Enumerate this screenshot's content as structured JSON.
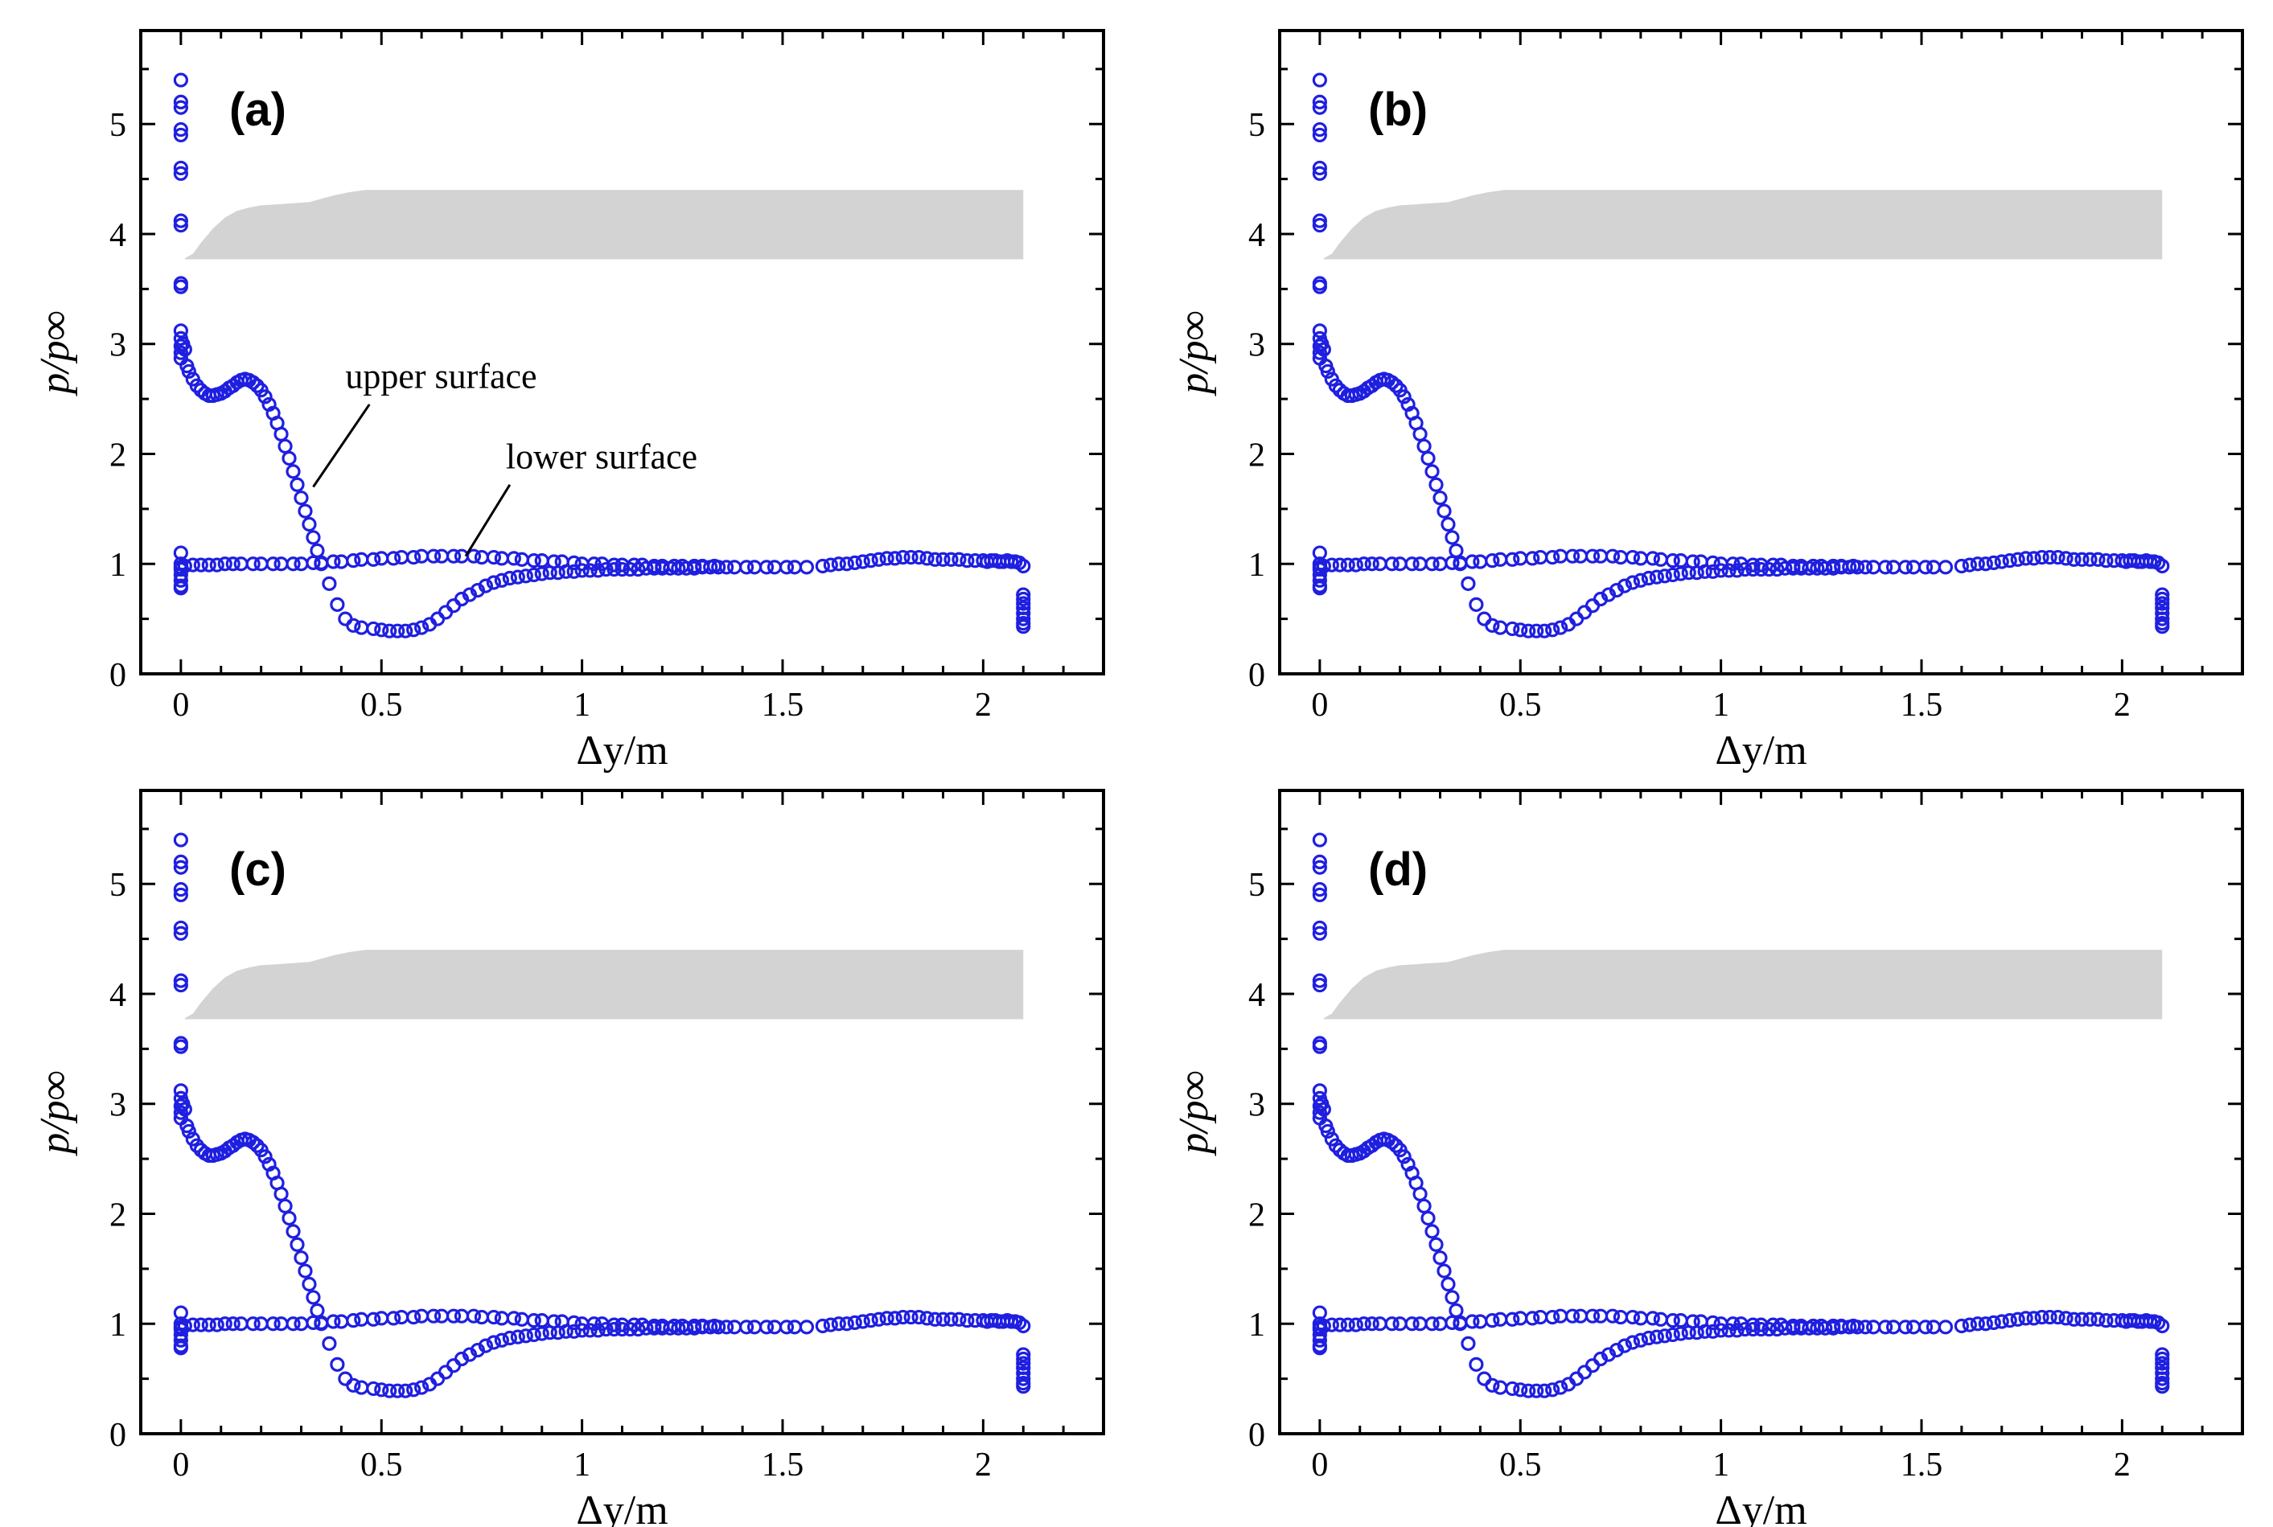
{
  "chart_data": [
    {
      "panel": "(a)",
      "type": "scatter",
      "xlabel": "Δy/m",
      "ylabel": "p/p∞",
      "xlim": [
        -0.1,
        2.3
      ],
      "ylim": [
        0,
        5.85
      ],
      "xticks": [
        "0",
        "0.5",
        "1",
        "1.5",
        "2"
      ],
      "yticks": [
        "0",
        "1",
        "2",
        "3",
        "4",
        "5"
      ],
      "annotations": [
        {
          "text": "upper surface",
          "points_to": [
            0.33,
            1.7
          ]
        },
        {
          "text": "lower surface",
          "points_to": [
            0.71,
            1.07
          ]
        }
      ]
    },
    {
      "panel": "(b)",
      "type": "scatter",
      "xlabel": "Δy/m",
      "ylabel": "p/p∞",
      "xlim": [
        -0.1,
        2.3
      ],
      "ylim": [
        0,
        5.85
      ],
      "xticks": [
        "0",
        "0.5",
        "1",
        "1.5",
        "2"
      ],
      "yticks": [
        "0",
        "1",
        "2",
        "3",
        "4",
        "5"
      ],
      "annotations": []
    },
    {
      "panel": "(c)",
      "type": "scatter",
      "xlabel": "Δy/m",
      "ylabel": "p/p∞",
      "xlim": [
        -0.1,
        2.3
      ],
      "ylim": [
        0,
        5.85
      ],
      "xticks": [
        "0",
        "0.5",
        "1",
        "1.5",
        "2"
      ],
      "yticks": [
        "0",
        "1",
        "2",
        "3",
        "4",
        "5"
      ],
      "annotations": []
    },
    {
      "panel": "(d)",
      "type": "scatter",
      "xlabel": "Δy/m",
      "ylabel": "p/p∞",
      "xlim": [
        -0.1,
        2.3
      ],
      "ylim": [
        0,
        5.85
      ],
      "xticks": [
        "0",
        "0.5",
        "1",
        "1.5",
        "2"
      ],
      "yticks": [
        "0",
        "1",
        "2",
        "3",
        "4",
        "5"
      ],
      "annotations": []
    }
  ],
  "series": {
    "upper_surface": {
      "name": "upper surface",
      "color": "#1f1fe0",
      "x": [
        0,
        0,
        0,
        0,
        0,
        0,
        0,
        0,
        0,
        0,
        0,
        0,
        0,
        0,
        0,
        0,
        0.005,
        0.01,
        0.015,
        0.02,
        0.03,
        0.04,
        0.05,
        0.06,
        0.07,
        0.08,
        0.09,
        0.1,
        0.11,
        0.12,
        0.13,
        0.14,
        0.15,
        0.16,
        0.17,
        0.18,
        0.19,
        0.2,
        0.21,
        0.22,
        0.23,
        0.24,
        0.25,
        0.26,
        0.27,
        0.28,
        0.29,
        0.3,
        0.31,
        0.32,
        0.33,
        0.34,
        0.35,
        0.37,
        0.39,
        0.41,
        0.43,
        0.45,
        0.48,
        0.5,
        0.52,
        0.54,
        0.56,
        0.58,
        0.6,
        0.62,
        0.64,
        0.66,
        0.68,
        0.7,
        0.72,
        0.74,
        0.76,
        0.78,
        0.8,
        0.82,
        0.84,
        0.86,
        0.88,
        0.9,
        0.92,
        0.94,
        0.96,
        0.98,
        1.0,
        1.02,
        1.04,
        1.06,
        1.08,
        1.1,
        1.12,
        1.14,
        1.16,
        1.18,
        1.2,
        1.22,
        1.24,
        1.26,
        1.28,
        1.3,
        1.32,
        1.34
      ],
      "y": [
        5.4,
        5.2,
        5.15,
        4.95,
        4.9,
        4.6,
        4.55,
        4.12,
        4.08,
        3.55,
        3.52,
        3.12,
        3.05,
        2.98,
        2.92,
        2.87,
        3.0,
        2.95,
        2.8,
        2.75,
        2.68,
        2.62,
        2.58,
        2.55,
        2.53,
        2.53,
        2.54,
        2.55,
        2.57,
        2.6,
        2.62,
        2.65,
        2.67,
        2.68,
        2.67,
        2.65,
        2.62,
        2.58,
        2.52,
        2.45,
        2.37,
        2.28,
        2.18,
        2.07,
        1.96,
        1.84,
        1.72,
        1.6,
        1.48,
        1.36,
        1.24,
        1.12,
        1.0,
        0.82,
        0.63,
        0.5,
        0.44,
        0.42,
        0.41,
        0.4,
        0.39,
        0.39,
        0.39,
        0.4,
        0.42,
        0.45,
        0.5,
        0.56,
        0.62,
        0.68,
        0.72,
        0.76,
        0.8,
        0.83,
        0.85,
        0.87,
        0.88,
        0.89,
        0.9,
        0.91,
        0.92,
        0.92,
        0.93,
        0.93,
        0.94,
        0.94,
        0.94,
        0.95,
        0.95,
        0.95,
        0.95,
        0.95,
        0.96,
        0.96,
        0.96,
        0.96,
        0.96,
        0.96,
        0.96,
        0.97,
        0.97,
        0.97
      ]
    },
    "lower_surface": {
      "name": "lower surface",
      "color": "#1f1fe0",
      "x": [
        0,
        0,
        0,
        0,
        0,
        0,
        0,
        0,
        0.01,
        0.03,
        0.05,
        0.07,
        0.09,
        0.11,
        0.13,
        0.15,
        0.18,
        0.2,
        0.23,
        0.25,
        0.28,
        0.3,
        0.33,
        0.35,
        0.38,
        0.4,
        0.43,
        0.45,
        0.48,
        0.5,
        0.53,
        0.55,
        0.58,
        0.6,
        0.63,
        0.65,
        0.68,
        0.7,
        0.73,
        0.75,
        0.78,
        0.8,
        0.83,
        0.85,
        0.88,
        0.9,
        0.93,
        0.95,
        0.98,
        1.0,
        1.03,
        1.05,
        1.08,
        1.1,
        1.13,
        1.15,
        1.18,
        1.2,
        1.23,
        1.25,
        1.28,
        1.3,
        1.33,
        1.36,
        1.38,
        1.41,
        1.43,
        1.46,
        1.48,
        1.51,
        1.53,
        1.56,
        1.6,
        1.62,
        1.64,
        1.66,
        1.68,
        1.7,
        1.72,
        1.74,
        1.76,
        1.78,
        1.8,
        1.82,
        1.84,
        1.86,
        1.88,
        1.9,
        1.92,
        1.94,
        1.96,
        1.98,
        2.0,
        2.01,
        2.02,
        2.03,
        2.04,
        2.05,
        2.06,
        2.07,
        2.08,
        2.09,
        2.1,
        2.1,
        2.1,
        2.1,
        2.1,
        2.1,
        2.1,
        2.1,
        2.1
      ],
      "y": [
        1.1,
        1.0,
        0.97,
        0.95,
        0.9,
        0.85,
        0.8,
        0.78,
        0.98,
        0.99,
        0.99,
        0.99,
        0.99,
        1.0,
        1.0,
        1.0,
        1.0,
        1.0,
        1.0,
        1.0,
        1.0,
        1.0,
        1.01,
        1.01,
        1.02,
        1.02,
        1.03,
        1.04,
        1.04,
        1.05,
        1.05,
        1.06,
        1.06,
        1.07,
        1.07,
        1.07,
        1.07,
        1.07,
        1.07,
        1.06,
        1.06,
        1.05,
        1.05,
        1.04,
        1.03,
        1.03,
        1.02,
        1.02,
        1.01,
        1.0,
        1.0,
        1.0,
        0.99,
        0.99,
        0.99,
        0.99,
        0.98,
        0.98,
        0.98,
        0.98,
        0.98,
        0.98,
        0.98,
        0.97,
        0.97,
        0.97,
        0.97,
        0.97,
        0.97,
        0.97,
        0.97,
        0.97,
        0.98,
        0.99,
        1.0,
        1.0,
        1.01,
        1.02,
        1.03,
        1.04,
        1.05,
        1.05,
        1.06,
        1.06,
        1.06,
        1.05,
        1.04,
        1.04,
        1.04,
        1.04,
        1.03,
        1.03,
        1.03,
        1.02,
        1.03,
        1.03,
        1.02,
        1.02,
        1.03,
        1.02,
        1.02,
        1.01,
        0.98,
        0.72,
        0.68,
        0.64,
        0.6,
        0.55,
        0.5,
        0.46,
        0.43
      ]
    }
  },
  "geometry_shape": {
    "name": "body profile (gray)",
    "color": "#d3d3d3",
    "x": [
      0.01,
      0.03,
      0.05,
      0.08,
      0.11,
      0.14,
      0.17,
      0.2,
      0.24,
      0.28,
      0.32,
      0.35,
      0.38,
      0.42,
      0.46,
      0.5,
      2.1
    ],
    "y_top": [
      3.78,
      3.82,
      3.92,
      4.05,
      4.15,
      4.21,
      4.24,
      4.26,
      4.27,
      4.28,
      4.29,
      4.32,
      4.35,
      4.38,
      4.4,
      4.4,
      4.4
    ],
    "y_bottom": 3.77
  }
}
